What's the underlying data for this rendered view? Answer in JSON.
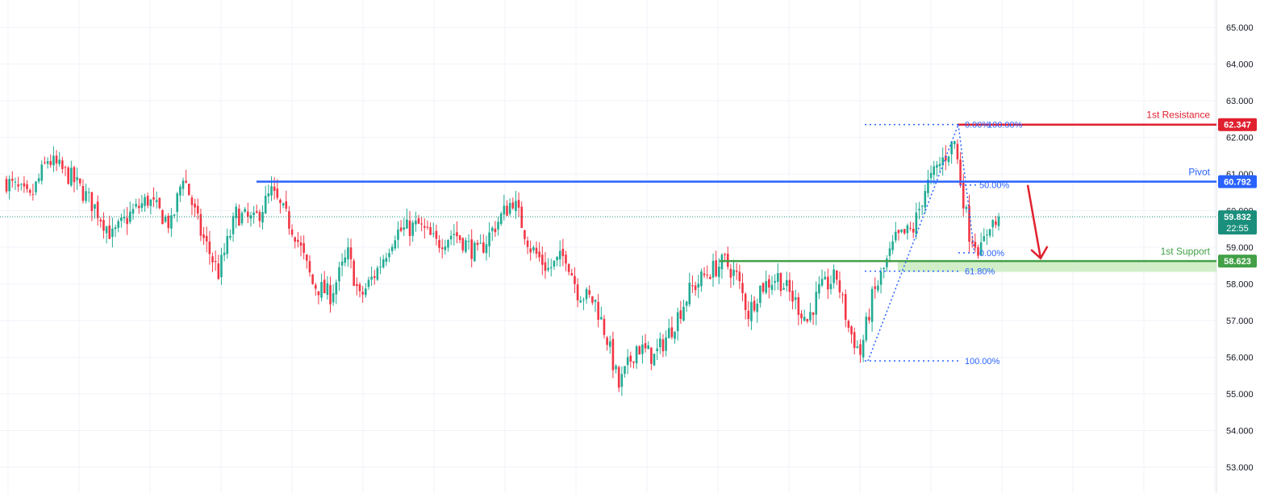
{
  "colors": {
    "bull": "#22ab94",
    "bear": "#f23645",
    "resistance": "#e0202f",
    "pivot": "#2962ff",
    "support": "#43a047",
    "support_zone": "#c9ebc0",
    "fib": "#2962ff",
    "grid": "#f0f3fa",
    "axis_text": "#131722",
    "arrow": "#e0202f",
    "last_price": "#1a8f7c"
  },
  "chart_data": {
    "type": "candlestick",
    "y_axis": {
      "position": "right",
      "ylim": [
        52.8,
        65.3
      ],
      "ticks": [
        "53.000",
        "54.000",
        "55.000",
        "56.000",
        "57.000",
        "58.000",
        "59.000",
        "60.000",
        "61.000",
        "62.000",
        "63.000",
        "64.000",
        "65.000"
      ]
    },
    "grid": true,
    "close_path": [
      [
        0,
        60.8
      ],
      [
        8,
        60.3
      ],
      [
        14,
        61.4
      ],
      [
        22,
        60.9
      ],
      [
        30,
        60.1
      ],
      [
        36,
        59.3
      ],
      [
        42,
        59.9
      ],
      [
        48,
        60.3
      ],
      [
        56,
        59.6
      ],
      [
        60,
        61.0
      ],
      [
        66,
        59.4
      ],
      [
        72,
        58.3
      ],
      [
        78,
        59.9
      ],
      [
        84,
        59.7
      ],
      [
        90,
        60.5
      ],
      [
        98,
        59.4
      ],
      [
        104,
        58.0
      ],
      [
        110,
        57.7
      ],
      [
        116,
        58.8
      ],
      [
        120,
        57.6
      ],
      [
        126,
        58.4
      ],
      [
        132,
        59.4
      ],
      [
        140,
        59.6
      ],
      [
        146,
        59.1
      ],
      [
        152,
        59.4
      ],
      [
        160,
        58.8
      ],
      [
        166,
        59.6
      ],
      [
        172,
        60.3
      ],
      [
        178,
        59.0
      ],
      [
        184,
        58.4
      ],
      [
        190,
        58.8
      ],
      [
        194,
        57.8
      ],
      [
        200,
        57.5
      ],
      [
        204,
        56.5
      ],
      [
        208,
        55.2
      ],
      [
        214,
        56.3
      ],
      [
        220,
        56.0
      ],
      [
        226,
        56.8
      ],
      [
        232,
        57.8
      ],
      [
        238,
        58.3
      ],
      [
        244,
        58.6
      ],
      [
        248,
        58.2
      ],
      [
        252,
        57.2
      ],
      [
        256,
        57.9
      ],
      [
        262,
        58.2
      ],
      [
        268,
        57.5
      ],
      [
        272,
        57.0
      ],
      [
        276,
        57.8
      ],
      [
        282,
        58.2
      ],
      [
        286,
        56.8
      ],
      [
        290,
        56.1
      ],
      [
        294,
        57.6
      ],
      [
        298,
        58.4
      ],
      [
        302,
        59.2
      ],
      [
        308,
        59.5
      ],
      [
        312,
        60.6
      ],
      [
        318,
        61.4
      ],
      [
        322,
        61.9
      ],
      [
        324,
        60.8
      ],
      [
        327,
        59.4
      ],
      [
        331,
        58.9
      ],
      [
        334,
        59.7
      ],
      [
        337,
        59.6
      ]
    ],
    "last_price": {
      "value": 59.832,
      "label": "59.832",
      "countdown": "22:55"
    },
    "levels": [
      {
        "name": "resistance",
        "label": "1st Resistance",
        "value": 62.347,
        "price_label": "62.347"
      },
      {
        "name": "pivot",
        "label": "Pivot",
        "value": 60.792,
        "price_label": "60.792"
      },
      {
        "name": "support",
        "label": "1st Support",
        "value": 58.623,
        "price_label": "58.623"
      }
    ],
    "fibonacci": {
      "upper_swing": [
        {
          "label": "0.00%",
          "value": 62.35
        },
        {
          "label": "100.00%",
          "value": 62.35
        },
        {
          "label": "50.00%",
          "value": 60.7
        },
        {
          "label": "0.00%",
          "value": 58.85
        }
      ],
      "lower_swing": [
        {
          "label": "61.80%",
          "value": 58.35
        },
        {
          "label": "100.00%",
          "value": 55.9
        }
      ]
    },
    "projection": "down-arrow-to-support"
  }
}
